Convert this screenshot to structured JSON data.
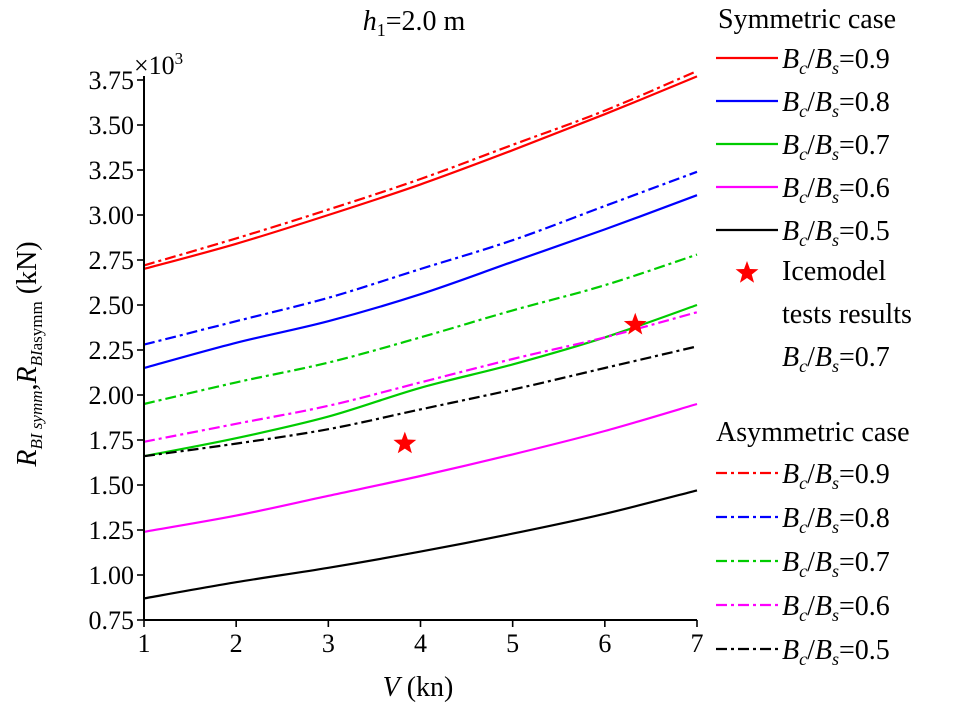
{
  "chart_data": {
    "type": "line",
    "title_var": "h",
    "title_sub": "1",
    "title_rest": "=2.0 m",
    "multiplier": "×10",
    "multiplier_exp": "3",
    "xlabel_var": "V",
    "xlabel_unit": " (kn)",
    "ylabel_r1": "R",
    "ylabel_sub1": "BI symm",
    "ylabel_comma": ",",
    "ylabel_r2": "R",
    "ylabel_sub2": "BI",
    "ylabel_sub3": "asymm",
    "ylabel_unit": " (kN)",
    "xlim": [
      1,
      7
    ],
    "ylim": [
      0.75,
      3.75
    ],
    "xticks": [
      "1",
      "2",
      "3",
      "4",
      "5",
      "6",
      "7"
    ],
    "yticks": [
      "0.75",
      "1.00",
      "1.25",
      "1.50",
      "1.75",
      "2.00",
      "2.25",
      "2.50",
      "2.75",
      "3.00",
      "3.25",
      "3.50",
      "3.75"
    ],
    "x": [
      1,
      2,
      3,
      4,
      5,
      6,
      7
    ],
    "series": [
      {
        "name": "Bc/Bs=0.9",
        "case": "symmetric",
        "color": "#ff0000",
        "dash": "solid",
        "values": [
          2.7,
          2.84,
          3.0,
          3.17,
          3.36,
          3.56,
          3.77
        ]
      },
      {
        "name": "Bc/Bs=0.8",
        "case": "symmetric",
        "color": "#0000ff",
        "dash": "solid",
        "values": [
          2.15,
          2.29,
          2.41,
          2.56,
          2.74,
          2.92,
          3.11
        ]
      },
      {
        "name": "Bc/Bs=0.7",
        "case": "symmetric",
        "color": "#00cc00",
        "dash": "solid",
        "values": [
          1.66,
          1.76,
          1.88,
          2.04,
          2.17,
          2.32,
          2.5
        ]
      },
      {
        "name": "Bc/Bs=0.6",
        "case": "symmetric",
        "color": "#ff00ff",
        "dash": "solid",
        "values": [
          1.24,
          1.33,
          1.44,
          1.55,
          1.67,
          1.8,
          1.95
        ]
      },
      {
        "name": "Bc/Bs=0.5",
        "case": "symmetric",
        "color": "#000000",
        "dash": "solid",
        "values": [
          0.87,
          0.96,
          1.04,
          1.13,
          1.23,
          1.34,
          1.47
        ]
      },
      {
        "name": "Bc/Bs=0.9",
        "case": "asymmetric",
        "color": "#ff0000",
        "dash": "dashdot",
        "values": [
          2.72,
          2.87,
          3.03,
          3.2,
          3.39,
          3.58,
          3.8
        ]
      },
      {
        "name": "Bc/Bs=0.8",
        "case": "asymmetric",
        "color": "#0000ff",
        "dash": "dashdot",
        "values": [
          2.28,
          2.41,
          2.54,
          2.7,
          2.86,
          3.05,
          3.24
        ]
      },
      {
        "name": "Bc/Bs=0.7",
        "case": "asymmetric",
        "color": "#00cc00",
        "dash": "dashdot",
        "values": [
          1.95,
          2.07,
          2.18,
          2.32,
          2.47,
          2.61,
          2.78
        ]
      },
      {
        "name": "Bc/Bs=0.6",
        "case": "asymmetric",
        "color": "#ff00ff",
        "dash": "dashdot",
        "values": [
          1.74,
          1.84,
          1.94,
          2.07,
          2.2,
          2.32,
          2.46
        ]
      },
      {
        "name": "Bc/Bs=0.5",
        "case": "asymmetric",
        "color": "#000000",
        "dash": "dashdot",
        "values": [
          1.66,
          1.73,
          1.81,
          1.92,
          2.03,
          2.15,
          2.27
        ]
      }
    ],
    "test_points": {
      "name": "Icemodel tests results",
      "color": "#ff0000",
      "points": [
        {
          "x": 3.83,
          "y": 1.73
        },
        {
          "x": 6.33,
          "y": 2.39
        }
      ]
    },
    "legend": {
      "position": "right",
      "symmetric_title": "Symmetric case",
      "asymmetric_title": "Asymmetric case",
      "bc": "B",
      "bc_sub": "c",
      "slash": "/",
      "bs": "B",
      "bs_sub": "s",
      "entries_values": [
        "=0.9",
        "=0.8",
        "=0.7",
        "=0.6",
        "=0.5"
      ],
      "marker_line1": "Icemodel",
      "marker_line2": "tests results",
      "marker_ratio": "=0.7"
    }
  }
}
